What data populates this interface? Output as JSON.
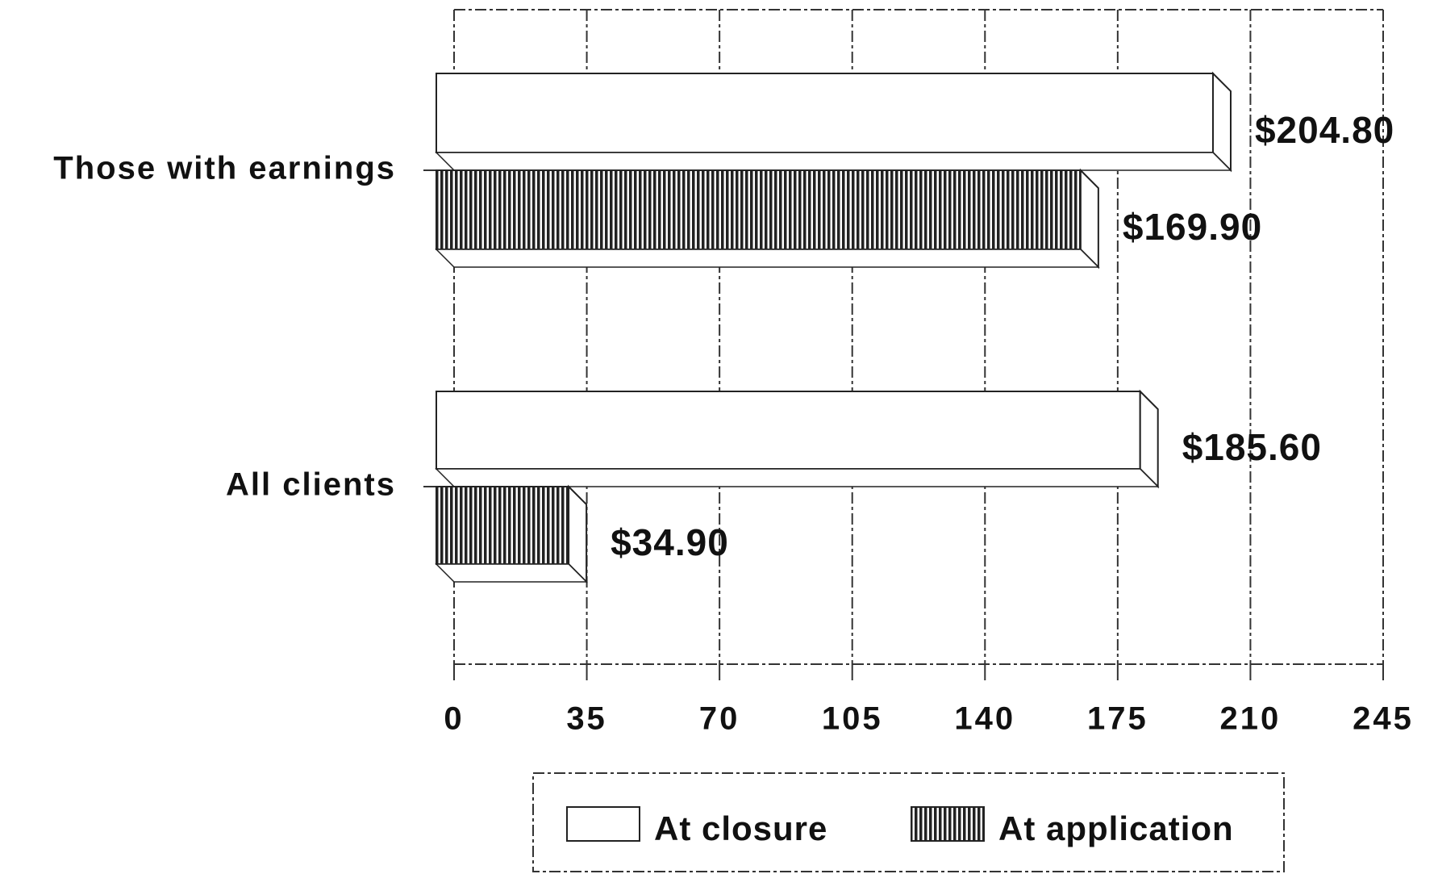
{
  "chart_data": {
    "type": "bar",
    "orientation": "horizontal",
    "categories": [
      "Those with earnings",
      "All clients"
    ],
    "series": [
      {
        "name": "At closure",
        "color": "#ffffff",
        "values": [
          204.8,
          185.6
        ],
        "value_labels": [
          "$204.80",
          "$185.60"
        ]
      },
      {
        "name": "At application",
        "color": "hatched",
        "values": [
          169.9,
          34.9
        ],
        "value_labels": [
          "$169.90",
          "$34.90"
        ]
      }
    ],
    "xlim": [
      0,
      245
    ],
    "xticks": [
      0,
      35,
      70,
      105,
      140,
      175,
      210,
      245
    ],
    "grid": true,
    "legend": "bottom"
  }
}
